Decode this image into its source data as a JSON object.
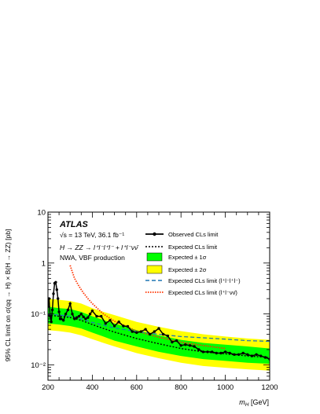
{
  "chart_data": {
    "type": "line",
    "experiment": "ATLAS",
    "energy_lumi": "√s = 13 TeV, 36.1 fb⁻¹",
    "process": "H → ZZ → l⁺l⁻l⁺l⁻ + l⁺l⁻νν̄",
    "subtitle": "NWA, VBF production",
    "xlabel": "m_H [GeV]",
    "ylabel": "95% CL limit on σ(qq → H) × B(H → ZZ) [pb]",
    "xlim": [
      200,
      1200
    ],
    "ylim": [
      0.005,
      10
    ],
    "yscale": "log",
    "x_ticks": [
      200,
      400,
      600,
      800,
      1000,
      1200
    ],
    "y_ticks": [
      {
        "value": 0.01,
        "label": "10⁻²"
      },
      {
        "value": 0.1,
        "label": "10⁻¹"
      },
      {
        "value": 1,
        "label": "1"
      },
      {
        "value": 10,
        "label": "10"
      }
    ],
    "legend": {
      "observed": "Observed CLs limit",
      "expected": "Expected CLs limit",
      "band1": "Expected ± 1σ",
      "band2": "Expected ± 2σ",
      "exp_4l": "Expected CLs limit (l⁺l⁻l⁺l⁻)",
      "exp_llvv": "Expected CLs limit (l⁺l⁻νν̄)"
    },
    "colors": {
      "band1": "#00ff00",
      "band2": "#ffff00",
      "observed": "#000000",
      "expected": "#000000",
      "exp_4l": "#1f77b4",
      "exp_llvv": "#ff3300"
    },
    "observed": {
      "x": [
        200,
        205,
        210,
        215,
        220,
        225,
        230,
        235,
        240,
        245,
        250,
        255,
        260,
        270,
        280,
        290,
        300,
        310,
        320,
        330,
        340,
        350,
        360,
        370,
        380,
        390,
        400,
        420,
        440,
        460,
        480,
        500,
        520,
        540,
        560,
        580,
        600,
        620,
        640,
        660,
        680,
        700,
        720,
        740,
        760,
        780,
        800,
        820,
        840,
        860,
        880,
        900,
        920,
        940,
        960,
        980,
        1000,
        1020,
        1040,
        1060,
        1080,
        1100,
        1120,
        1140,
        1160,
        1180,
        1200
      ],
      "y": [
        0.14,
        0.2,
        0.09,
        0.07,
        0.12,
        0.25,
        0.4,
        0.42,
        0.3,
        0.2,
        0.11,
        0.08,
        0.08,
        0.075,
        0.1,
        0.12,
        0.16,
        0.1,
        0.08,
        0.085,
        0.09,
        0.1,
        0.088,
        0.08,
        0.085,
        0.1,
        0.115,
        0.09,
        0.09,
        0.065,
        0.075,
        0.058,
        0.07,
        0.058,
        0.057,
        0.045,
        0.043,
        0.045,
        0.05,
        0.04,
        0.045,
        0.052,
        0.04,
        0.037,
        0.028,
        0.03,
        0.024,
        0.025,
        0.024,
        0.023,
        0.02,
        0.018,
        0.018,
        0.018,
        0.017,
        0.017,
        0.018,
        0.017,
        0.016,
        0.016,
        0.017,
        0.016,
        0.015,
        0.016,
        0.015,
        0.014,
        0.013
      ]
    },
    "expected": {
      "x": [
        200,
        250,
        300,
        350,
        400,
        450,
        500,
        600,
        700,
        800,
        900,
        1000,
        1100,
        1200
      ],
      "y": [
        0.095,
        0.09,
        0.085,
        0.075,
        0.062,
        0.052,
        0.044,
        0.033,
        0.026,
        0.021,
        0.018,
        0.0165,
        0.015,
        0.014
      ]
    },
    "band_1sigma": {
      "x": [
        200,
        250,
        300,
        350,
        400,
        450,
        500,
        600,
        700,
        800,
        900,
        1000,
        1100,
        1200
      ],
      "low": [
        0.065,
        0.062,
        0.058,
        0.052,
        0.043,
        0.036,
        0.03,
        0.023,
        0.018,
        0.015,
        0.013,
        0.012,
        0.011,
        0.0105
      ],
      "high": [
        0.14,
        0.13,
        0.125,
        0.11,
        0.09,
        0.076,
        0.065,
        0.048,
        0.038,
        0.031,
        0.027,
        0.025,
        0.023,
        0.021
      ]
    },
    "band_2sigma": {
      "x": [
        200,
        250,
        300,
        350,
        400,
        450,
        500,
        600,
        700,
        800,
        900,
        1000,
        1100,
        1200
      ],
      "low": [
        0.048,
        0.046,
        0.043,
        0.038,
        0.032,
        0.027,
        0.023,
        0.017,
        0.0135,
        0.011,
        0.0095,
        0.0088,
        0.0082,
        0.0077
      ],
      "high": [
        0.2,
        0.19,
        0.18,
        0.16,
        0.13,
        0.11,
        0.095,
        0.07,
        0.056,
        0.046,
        0.04,
        0.036,
        0.033,
        0.031
      ]
    },
    "expected_4l": {
      "x": [
        200,
        250,
        300,
        350,
        400,
        450,
        500,
        600,
        700,
        800,
        900,
        1000,
        1100,
        1200
      ],
      "y": [
        0.1,
        0.095,
        0.09,
        0.08,
        0.068,
        0.06,
        0.053,
        0.045,
        0.04,
        0.036,
        0.034,
        0.032,
        0.03,
        0.029
      ]
    },
    "expected_llvv": {
      "x": [
        300,
        320,
        340,
        360,
        380,
        400,
        450,
        500,
        600,
        700,
        800,
        900,
        1000
      ],
      "y": [
        0.9,
        0.5,
        0.35,
        0.26,
        0.2,
        0.16,
        0.1,
        0.072,
        0.046,
        0.035,
        0.028,
        0.024,
        0.021
      ]
    }
  }
}
